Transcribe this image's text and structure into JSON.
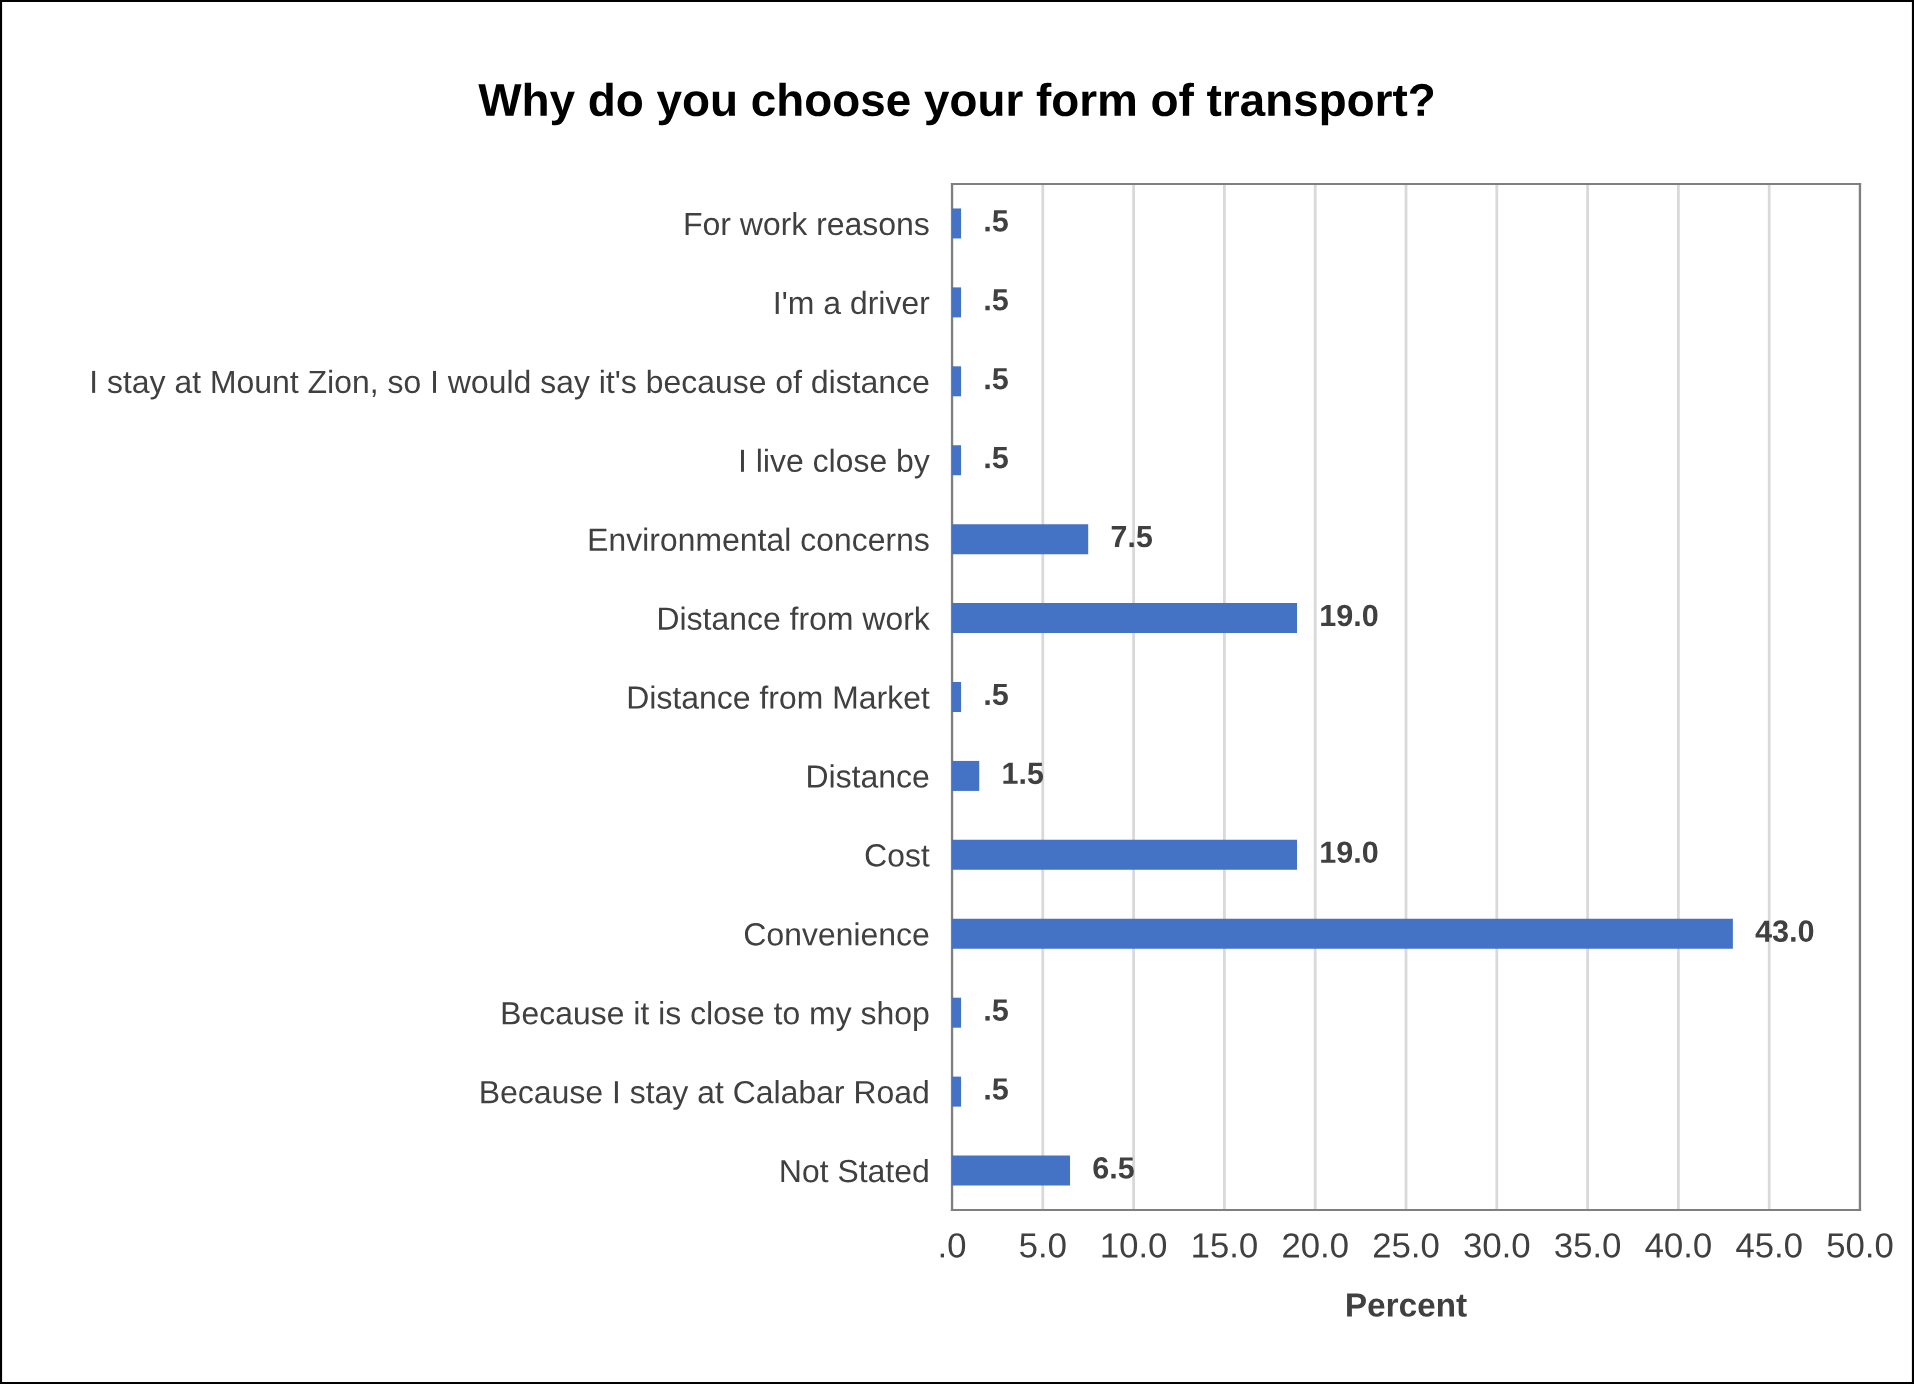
{
  "chart_data": {
    "type": "bar",
    "orientation": "horizontal",
    "title": "Why do you choose your form of transport?",
    "xlabel": "Percent",
    "categories": [
      "For work reasons",
      "I'm a driver",
      "I stay at Mount Zion, so I would say it's because of distance",
      "I live close by",
      "Environmental concerns",
      "Distance from work",
      "Distance from Market",
      "Distance",
      "Cost",
      "Convenience",
      "Because it is close to my shop",
      "Because I stay at Calabar Road",
      "Not Stated"
    ],
    "values": [
      0.5,
      0.5,
      0.5,
      0.5,
      7.5,
      19.0,
      0.5,
      1.5,
      19.0,
      43.0,
      0.5,
      0.5,
      6.5
    ],
    "value_labels": [
      ".5",
      ".5",
      ".5",
      ".5",
      "7.5",
      "19.0",
      ".5",
      "1.5",
      "19.0",
      "43.0",
      ".5",
      ".5",
      "6.5"
    ],
    "color": "#4472c4",
    "xlim": [
      0,
      50
    ],
    "xticks": [
      {
        "value": 0,
        "label": ".0"
      },
      {
        "value": 5,
        "label": "5.0"
      },
      {
        "value": 10,
        "label": "10.0"
      },
      {
        "value": 15,
        "label": "15.0"
      },
      {
        "value": 20,
        "label": "20.0"
      },
      {
        "value": 25,
        "label": "25.0"
      },
      {
        "value": 30,
        "label": "30.0"
      },
      {
        "value": 35,
        "label": "35.0"
      },
      {
        "value": 40,
        "label": "40.0"
      },
      {
        "value": 45,
        "label": "45.0"
      },
      {
        "value": 50,
        "label": "50.0"
      }
    ],
    "grid": "x"
  }
}
